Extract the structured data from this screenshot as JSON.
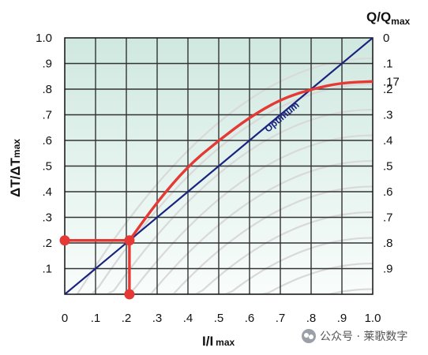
{
  "chart_data": {
    "type": "line",
    "title": "",
    "xlabel": "I/I",
    "xlabel_sub": "max",
    "ylabel": "ΔT/ΔT",
    "ylabel_sub": "max",
    "y2label": "Q/Q",
    "y2label_sub": "max",
    "xlim": [
      0,
      1
    ],
    "ylim": [
      0,
      1
    ],
    "grid": true,
    "x_ticks": [
      "0",
      ".1",
      ".2",
      ".3",
      ".4",
      ".5",
      ".6",
      ".7",
      ".8",
      ".9",
      "1.0"
    ],
    "y_ticks": [
      "",
      ".1",
      ".2",
      ".3",
      ".4",
      ".5",
      ".6",
      ".7",
      ".8",
      ".9",
      "1.0"
    ],
    "y2_ticks": [
      {
        "label": "0",
        "y": 1.0
      },
      {
        "label": ".1",
        "y": 0.9
      },
      {
        "label": ".17",
        "y": 0.83
      },
      {
        "label": ".2",
        "y": 0.8
      },
      {
        "label": ".3",
        "y": 0.7
      },
      {
        "label": ".4",
        "y": 0.6
      },
      {
        "label": ".5",
        "y": 0.5
      },
      {
        "label": ".6",
        "y": 0.4
      },
      {
        "label": ".7",
        "y": 0.3
      },
      {
        "label": ".8",
        "y": 0.2
      },
      {
        "label": ".9",
        "y": 0.1
      }
    ],
    "series": [
      {
        "label": "Optimum",
        "color": "#1a237e",
        "x": [
          0,
          1.0
        ],
        "y": [
          0,
          1.0
        ]
      },
      {
        "color": "#e53935",
        "x": [
          0.21,
          0.3,
          0.4,
          0.5,
          0.6,
          0.7,
          0.8,
          0.9,
          1.0
        ],
        "y": [
          0.21,
          0.36,
          0.5,
          0.6,
          0.69,
          0.76,
          0.8,
          0.825,
          0.83
        ]
      }
    ],
    "markers": [
      {
        "x": 0,
        "y": 0.21
      },
      {
        "x": 0.21,
        "y": 0.21
      },
      {
        "x": 0.21,
        "y": 0
      }
    ],
    "guides": [
      {
        "x": [
          0,
          0.21
        ],
        "y": [
          0.21,
          0.21
        ]
      },
      {
        "x": [
          0.21,
          0.21
        ],
        "y": [
          0.21,
          0
        ]
      }
    ],
    "background_curves": {
      "color": "#d9d9d9",
      "q_values": [
        0.1,
        0.2,
        0.3,
        0.4,
        0.5,
        0.6,
        0.7,
        0.8,
        0.9,
        1.0
      ]
    }
  },
  "watermark": {
    "text": "公众号 · 莱歌数字"
  }
}
